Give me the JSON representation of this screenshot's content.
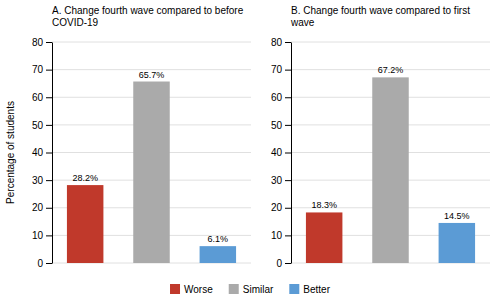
{
  "chart_data": [
    {
      "type": "bar",
      "title": "A. Change fourth wave compared to before COVID-19",
      "ylabel": "Percentage of students",
      "categories": [
        "Worse",
        "Similar",
        "Better"
      ],
      "values": [
        28.2,
        65.7,
        6.1
      ],
      "value_labels": [
        "28.2%",
        "65.7%",
        "6.1%"
      ],
      "colors": [
        "#c0392b",
        "#aaaaaa",
        "#5b9bd5"
      ],
      "ylim": [
        0,
        80
      ],
      "yticks": [
        0,
        10,
        20,
        30,
        40,
        50,
        60,
        70,
        80
      ],
      "grid": true,
      "data_labels": true,
      "tick_labels": "y",
      "legend": "bottom"
    },
    {
      "type": "bar",
      "title": "B. Change fourth wave compared to first wave",
      "categories": [
        "Worse",
        "Similar",
        "Better"
      ],
      "values": [
        18.3,
        67.2,
        14.5
      ],
      "value_labels": [
        "18.3%",
        "67.2%",
        "14.5%"
      ],
      "colors": [
        "#c0392b",
        "#aaaaaa",
        "#5b9bd5"
      ],
      "ylim": [
        0,
        80
      ],
      "yticks": [
        0,
        10,
        20,
        30,
        40,
        50,
        60,
        70,
        80
      ],
      "grid": true,
      "data_labels": true,
      "tick_labels": "y"
    }
  ]
}
